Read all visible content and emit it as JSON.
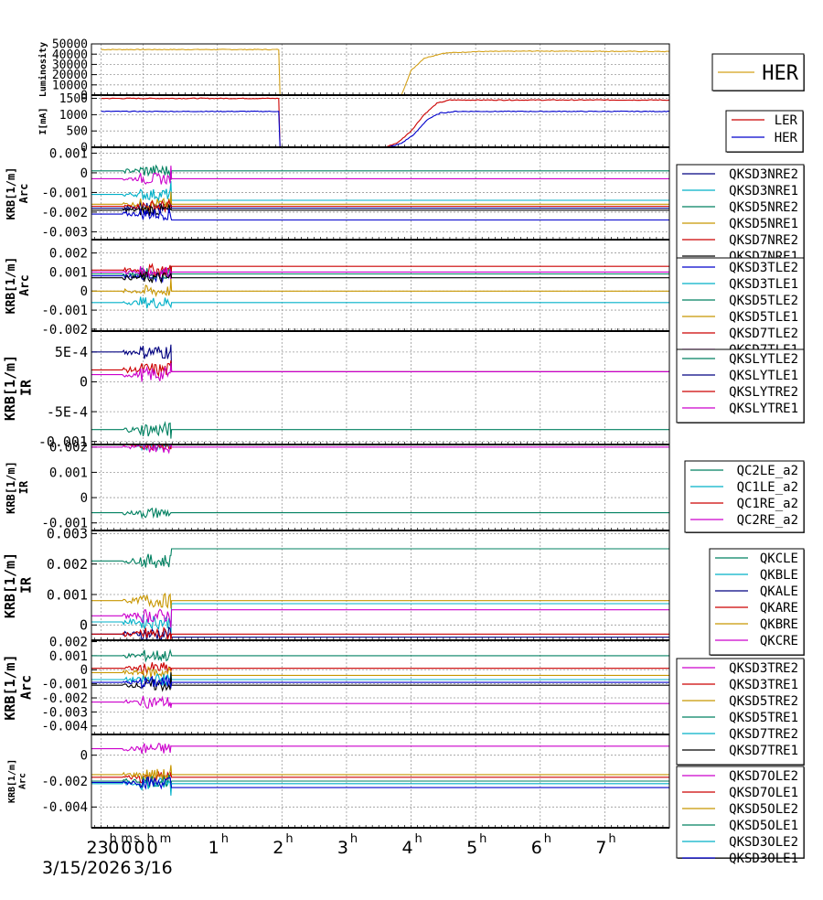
{
  "chart_data": [
    {
      "type": "line",
      "ylabel": "Luminosity",
      "ylim": [
        0,
        50000
      ],
      "yticks": [
        "0",
        "10000",
        "20000",
        "30000",
        "40000",
        "50000"
      ],
      "ytick_values": [
        0,
        10000,
        20000,
        30000,
        40000,
        50000
      ],
      "legend_placement": "right",
      "series": [
        {
          "name": "HER",
          "color": "#d4a017",
          "x": [
            -0.8,
            1.95,
            1.97,
            3.85,
            4.0,
            4.2,
            4.5,
            5.0,
            6.0,
            7.0,
            8.0
          ],
          "y": [
            44500,
            44500,
            0,
            0,
            24000,
            36000,
            41000,
            42500,
            43000,
            42800,
            42500
          ]
        }
      ]
    },
    {
      "type": "line",
      "ylabel": "I[mA]",
      "ylim": [
        0,
        1600
      ],
      "yticks": [
        "0",
        "500",
        "1000",
        "1500"
      ],
      "ytick_values": [
        0,
        500,
        1000,
        1500
      ],
      "legend_placement": "right",
      "series": [
        {
          "name": "LER",
          "color": "#cc0000",
          "x": [
            -0.8,
            1.95,
            1.97,
            3.6,
            3.8,
            4.0,
            4.2,
            4.4,
            4.6,
            8.0
          ],
          "y": [
            1500,
            1500,
            0,
            0,
            150,
            500,
            1000,
            1350,
            1450,
            1450
          ]
        },
        {
          "name": "HER",
          "color": "#0000cc",
          "x": [
            -0.8,
            1.95,
            1.97,
            3.65,
            3.85,
            4.05,
            4.25,
            4.45,
            4.7,
            8.0
          ],
          "y": [
            1100,
            1100,
            0,
            0,
            120,
            400,
            850,
            1050,
            1100,
            1100
          ]
        }
      ]
    },
    {
      "type": "line",
      "ylabel": "KRB[1/m] Arc",
      "ylim": [
        -0.0034,
        0.0013
      ],
      "yticks": [
        "0.001",
        "0",
        "-0.001",
        "-0.002",
        "-0.003"
      ],
      "ytick_values": [
        0.001,
        0,
        -0.001,
        -0.002,
        -0.003
      ],
      "legend_placement": "right",
      "series": [
        {
          "name": "QKSD3NRE2",
          "color": "#000080",
          "pre": -0.0018,
          "post": -0.0018
        },
        {
          "name": "QKSD3NRE1",
          "color": "#00b0c8",
          "pre": -0.0011,
          "post": -0.0014
        },
        {
          "name": "QKSD5NRE2",
          "color": "#008060",
          "pre": 0.0001,
          "post": 0.0001
        },
        {
          "name": "QKSD5NRE1",
          "color": "#c89600",
          "pre": -0.0016,
          "post": -0.0016
        },
        {
          "name": "QKSD7NRE2",
          "color": "#cc0000",
          "pre": -0.0017,
          "post": -0.0017
        },
        {
          "name": "QKSD7NRE1",
          "color": "#000000",
          "pre": -0.0019,
          "post": -0.0019
        },
        {
          "name": "",
          "color": "#0000cc",
          "pre": -0.0021,
          "post": -0.0024
        },
        {
          "name": "",
          "color": "#cc00cc",
          "pre": -0.0003,
          "post": -0.0003
        }
      ]
    },
    {
      "type": "line",
      "ylabel": "KRB[1/m] Arc",
      "ylim": [
        -0.0021,
        0.0027
      ],
      "yticks": [
        "0.002",
        "0.001",
        "0",
        "-0.001",
        "-0.002"
      ],
      "ytick_values": [
        0.002,
        0.001,
        0,
        -0.001,
        -0.002
      ],
      "legend_placement": "right",
      "series": [
        {
          "name": "QKSD3TLE2",
          "color": "#0000cc",
          "pre": 0.0008,
          "post": 0.0009
        },
        {
          "name": "QKSD3TLE1",
          "color": "#00b0c8",
          "pre": -0.0006,
          "post": -0.0006
        },
        {
          "name": "QKSD5TLE2",
          "color": "#008060",
          "pre": 0.0009,
          "post": 0.0009
        },
        {
          "name": "QKSD5TLE1",
          "color": "#c89600",
          "pre": 0.0,
          "post": 0.0
        },
        {
          "name": "QKSD7TLE2",
          "color": "#cc0000",
          "pre": 0.0011,
          "post": 0.0013
        },
        {
          "name": "QKSD7TLE1",
          "color": "#cc00cc",
          "pre": 0.001,
          "post": 0.001
        },
        {
          "name": "",
          "color": "#000000",
          "pre": 0.0007,
          "post": 0.0007
        }
      ]
    },
    {
      "type": "line",
      "ylabel": "KRB[1/m] IR",
      "ylim": [
        -0.00105,
        0.00085
      ],
      "yticks": [
        "5E-4",
        "0",
        "-5E-4",
        "-0.001"
      ],
      "ytick_values": [
        0.0005,
        0,
        -0.0005,
        -0.001
      ],
      "legend_placement": "right",
      "series": [
        {
          "name": "QKSLYTLE2",
          "color": "#008060",
          "pre": -0.0008,
          "post": -0.0008
        },
        {
          "name": "QKSLYTLE1",
          "color": "#000080",
          "pre": 0.0005,
          "post": 0.00017
        },
        {
          "name": "QKSLYTRE2",
          "color": "#cc0000",
          "pre": 0.0002,
          "post": 0.00017
        },
        {
          "name": "QKSLYTRE1",
          "color": "#cc00cc",
          "pre": 0.00012,
          "post": 0.00017
        }
      ]
    },
    {
      "type": "line",
      "ylabel": "KRB[1/m] IR",
      "ylim": [
        -0.0013,
        0.0021
      ],
      "yticks": [
        "0.002",
        "0.001",
        "0",
        "-0.001"
      ],
      "ytick_values": [
        0.002,
        0.001,
        0,
        -0.001
      ],
      "legend_placement": "right",
      "series": [
        {
          "name": "QC2LE_a2",
          "color": "#008060",
          "pre": -0.0006,
          "post": -0.0006
        },
        {
          "name": "QC1LE_a2",
          "color": "#00b0c8",
          "pre": 0.0021,
          "post": 0.0021
        },
        {
          "name": "QC1RE_a2",
          "color": "#cc0000",
          "pre": 0.0021,
          "post": 0.0021
        },
        {
          "name": "QC2RE_a2",
          "color": "#cc00cc",
          "pre": 0.002,
          "post": 0.002
        }
      ]
    },
    {
      "type": "line",
      "ylabel": "KRB[1/m] IR",
      "ylim": [
        -0.0005,
        0.0031
      ],
      "yticks": [
        "0.003",
        "0.002",
        "0.001",
        "0"
      ],
      "ytick_values": [
        0.003,
        0.002,
        0.001,
        0
      ],
      "legend_placement": "right",
      "series": [
        {
          "name": "QKCLE",
          "color": "#008060",
          "pre": 0.0021,
          "post": 0.0025
        },
        {
          "name": "QKBLE",
          "color": "#00b0c8",
          "pre": 0.0001,
          "post": 0.0007
        },
        {
          "name": "QKALE",
          "color": "#000080",
          "pre": -0.0003,
          "post": -0.0004
        },
        {
          "name": "QKARE",
          "color": "#cc0000",
          "pre": -0.0003,
          "post": -0.0003
        },
        {
          "name": "QKBRE",
          "color": "#c89600",
          "pre": 0.0008,
          "post": 0.0008
        },
        {
          "name": "QKCRE",
          "color": "#cc00cc",
          "pre": 0.0003,
          "post": 0.0005
        }
      ]
    },
    {
      "type": "line",
      "ylabel": "KRB[1/m] Arc",
      "ylim": [
        -0.0046,
        0.0021
      ],
      "yticks": [
        "0.002",
        "0.001",
        "0",
        "-0.001",
        "-0.002",
        "-0.003",
        "-0.004"
      ],
      "ytick_values": [
        0.002,
        0.001,
        0,
        -0.001,
        -0.002,
        -0.003,
        -0.004
      ],
      "legend_placement": "right",
      "series": [
        {
          "name": "QKSD3TRE2",
          "color": "#cc00cc",
          "pre": -0.0023,
          "post": -0.0024
        },
        {
          "name": "QKSD3TRE1",
          "color": "#cc0000",
          "pre": 0.0001,
          "post": 0.0001
        },
        {
          "name": "QKSD5TRE2",
          "color": "#c89600",
          "pre": -0.0002,
          "post": -0.0004
        },
        {
          "name": "QKSD5TRE1",
          "color": "#008060",
          "pre": 0.001,
          "post": 0.001
        },
        {
          "name": "QKSD7TRE2",
          "color": "#00b0c8",
          "pre": -0.0007,
          "post": -0.0007
        },
        {
          "name": "QKSD7TRE1",
          "color": "#000000",
          "pre": -0.0011,
          "post": -0.0011
        },
        {
          "name": "",
          "color": "#0000cc",
          "pre": -0.0009,
          "post": -0.0009
        }
      ]
    },
    {
      "type": "line",
      "ylabel": "KRB[1/m] Arc",
      "ylim": [
        -0.0056,
        0.0016
      ],
      "yticks": [
        "0",
        "-0.002",
        "-0.004"
      ],
      "ytick_values": [
        0,
        -0.002,
        -0.004
      ],
      "legend_placement": "right",
      "series": [
        {
          "name": "QKSD7OLE2",
          "color": "#cc00cc",
          "pre": 0.0005,
          "post": 0.0007
        },
        {
          "name": "QKSD7OLE1",
          "color": "#cc0000",
          "pre": -0.0017,
          "post": -0.0017
        },
        {
          "name": "QKSD5OLE2",
          "color": "#c89600",
          "pre": -0.0015,
          "post": -0.0015
        },
        {
          "name": "QKSD5OLE1",
          "color": "#008060",
          "pre": -0.002,
          "post": -0.002
        },
        {
          "name": "QKSD3OLE2",
          "color": "#00b0c8",
          "pre": -0.0022,
          "post": -0.0022
        },
        {
          "name": "QKSD3OLE1",
          "color": "#0000cc",
          "pre": -0.0021,
          "post": -0.0025
        }
      ]
    }
  ],
  "x_axis": {
    "xlim": [
      -0.95,
      8.0
    ],
    "grid": true,
    "ticks": [
      {
        "value": -0.8,
        "label": "23",
        "sup": "h"
      },
      {
        "value": -0.55,
        "label": "0",
        "sup": "m"
      },
      {
        "value": -0.35,
        "label": "0",
        "sup": "s"
      },
      {
        "value": -0.15,
        "label": "0",
        "sup": "h"
      },
      {
        "value": 0.05,
        "label": "0",
        "sup": "m"
      },
      {
        "value": 1,
        "label": "1",
        "sup": "h"
      },
      {
        "value": 2,
        "label": "2",
        "sup": "h"
      },
      {
        "value": 3,
        "label": "3",
        "sup": "h"
      },
      {
        "value": 4,
        "label": "4",
        "sup": "h"
      },
      {
        "value": 5,
        "label": "5",
        "sup": "h"
      },
      {
        "value": 6,
        "label": "6",
        "sup": "h"
      },
      {
        "value": 7,
        "label": "7",
        "sup": "h"
      }
    ],
    "date_left": "3/15/2026",
    "date_right": "3/16"
  }
}
